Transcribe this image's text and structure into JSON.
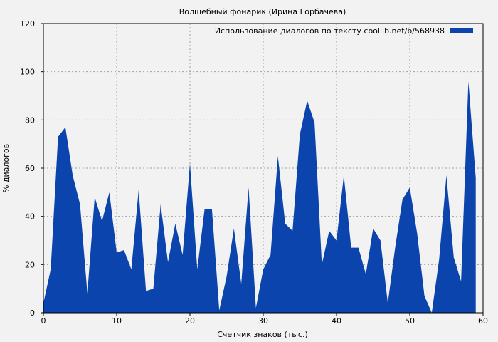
{
  "chart_data": {
    "type": "area",
    "title": "Волшебный фонарик (Ирина Горбачева)",
    "xlabel": "Счетчик знаков (тыс.)",
    "ylabel": "% диалогов",
    "xlim": [
      0,
      60
    ],
    "ylim": [
      0,
      120
    ],
    "xticks": [
      0,
      10,
      20,
      30,
      40,
      50,
      60
    ],
    "yticks": [
      0,
      20,
      40,
      60,
      80,
      100,
      120
    ],
    "grid": true,
    "legend_position": "top-right",
    "color": "#0a44ac",
    "series": [
      {
        "name": "Использование диалогов по тексту coollib.net/b/568938",
        "x": [
          0,
          1,
          2,
          3,
          4,
          5,
          6,
          7,
          8,
          9,
          10,
          11,
          12,
          13,
          14,
          15,
          16,
          17,
          18,
          19,
          20,
          21,
          22,
          23,
          24,
          25,
          26,
          27,
          28,
          29,
          30,
          31,
          32,
          33,
          34,
          35,
          36,
          37,
          38,
          39,
          40,
          41,
          42,
          43,
          44,
          45,
          46,
          47,
          48,
          49,
          50,
          51,
          52,
          53,
          54,
          55,
          56,
          57,
          58,
          59
        ],
        "values": [
          4,
          18,
          73,
          77,
          57,
          45,
          8,
          48,
          38,
          50,
          25,
          26,
          18,
          51,
          9,
          10,
          45,
          21,
          37,
          24,
          62,
          18,
          43,
          43,
          1,
          15,
          35,
          12,
          52,
          2,
          18,
          24,
          65,
          37,
          34,
          74,
          88,
          79,
          20,
          34,
          30,
          57,
          27,
          27,
          16,
          35,
          30,
          4,
          27,
          47,
          52,
          33,
          7,
          0,
          22,
          57,
          23,
          13,
          96,
          56
        ]
      }
    ]
  }
}
